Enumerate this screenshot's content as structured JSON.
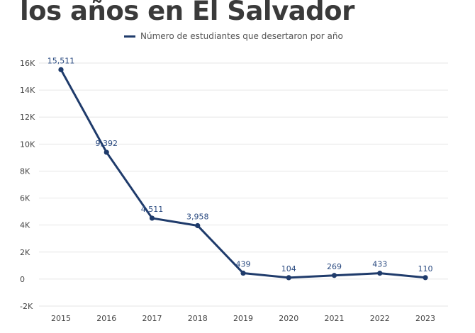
{
  "page": {
    "title": "los años en El Salvador"
  },
  "colors": {
    "series": "#1f3b6b",
    "grid": "#e6e6e6",
    "label": "#2a4a80"
  },
  "chart_data": {
    "type": "line",
    "title": "los años en El Salvador",
    "xlabel": "",
    "ylabel": "",
    "x": [
      "2015",
      "2016",
      "2017",
      "2018",
      "2019",
      "2020",
      "2021",
      "2022",
      "2023"
    ],
    "series": [
      {
        "name": "Número de estudiantes que desertaron por año",
        "values": [
          15511,
          9392,
          4511,
          3958,
          439,
          104,
          269,
          433,
          110
        ]
      }
    ],
    "data_labels": [
      "15,511",
      "9,392",
      "4,511",
      "3,958",
      "439",
      "104",
      "269",
      "433",
      "110"
    ],
    "ylim": [
      -2000,
      16000
    ],
    "yticks": [
      16000,
      14000,
      12000,
      10000,
      8000,
      6000,
      4000,
      2000,
      0,
      -2000
    ],
    "ytick_labels": [
      "16K",
      "14K",
      "12K",
      "10K",
      "8K",
      "6K",
      "4K",
      "2K",
      "0",
      "-2K"
    ],
    "grid": true,
    "legend": "top-center"
  }
}
